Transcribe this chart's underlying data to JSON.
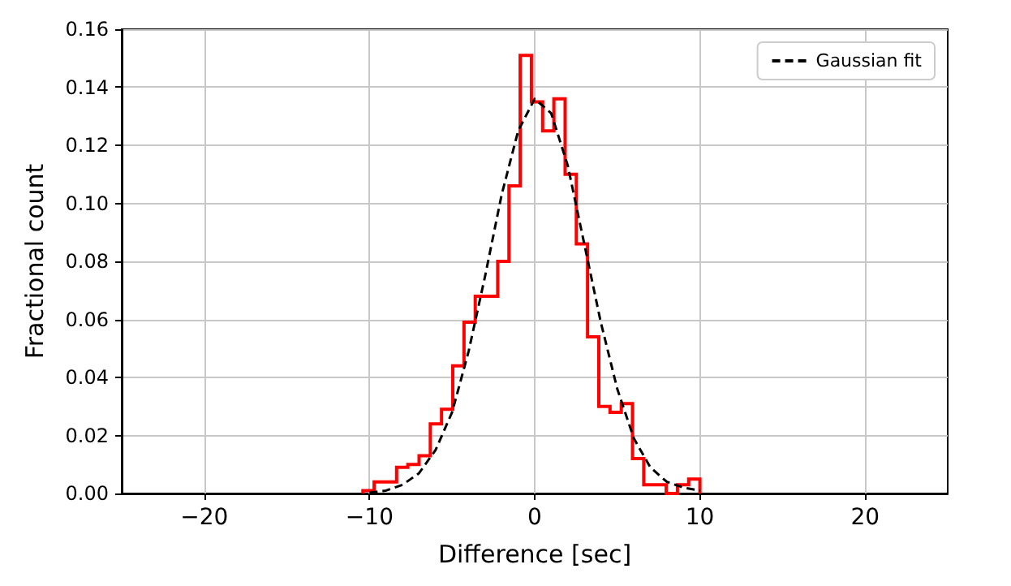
{
  "chart_data": {
    "type": "histogram",
    "xlabel": "Difference [sec]",
    "ylabel": "Fractional count",
    "bins": [
      -10.4,
      -9.72,
      -9.04,
      -8.36,
      -7.68,
      -7.0,
      -6.32,
      -5.64,
      -4.96,
      -4.28,
      -3.6,
      -2.92,
      -2.24,
      -1.56,
      -0.88,
      -0.2,
      0.48,
      1.16,
      1.84,
      2.52,
      3.2,
      3.88,
      4.56,
      5.24,
      5.92,
      6.6,
      7.28,
      7.96,
      8.64,
      9.32,
      10.0
    ],
    "series": [
      {
        "type": "histogram",
        "color": "#ff0000",
        "values": [
          0.001,
          0.004,
          0.004,
          0.009,
          0.01,
          0.013,
          0.024,
          0.029,
          0.044,
          0.059,
          0.068,
          0.068,
          0.08,
          0.106,
          0.151,
          0.135,
          0.125,
          0.136,
          0.11,
          0.086,
          0.054,
          0.03,
          0.028,
          0.031,
          0.012,
          0.003,
          0.003,
          0.0,
          0.003,
          0.005
        ]
      },
      {
        "type": "line",
        "name": "Gaussian fit",
        "color": "#000000",
        "line_style": "dashed",
        "marker": "none",
        "x": [
          -10,
          -9,
          -8,
          -7,
          -6,
          -5,
          -4,
          -3,
          -2,
          -1,
          0,
          1,
          2,
          3,
          4,
          5,
          6,
          7,
          8,
          9,
          10
        ],
        "values": [
          0.0003,
          0.001,
          0.003,
          0.007,
          0.015,
          0.028,
          0.049,
          0.075,
          0.103,
          0.125,
          0.136,
          0.131,
          0.113,
          0.086,
          0.059,
          0.036,
          0.019,
          0.009,
          0.004,
          0.002,
          0.001
        ]
      }
    ],
    "xlim": [
      -25,
      25
    ],
    "xticks": [
      {
        "value": -20,
        "label": "−20"
      },
      {
        "value": -10,
        "label": "−10"
      },
      0,
      10,
      20
    ],
    "ylim": [
      0,
      0.16
    ],
    "yticks": [
      {
        "value": 0,
        "label": "0.00"
      },
      {
        "value": 0.02,
        "label": "0.02"
      },
      {
        "value": 0.04,
        "label": "0.04"
      },
      {
        "value": 0.06,
        "label": "0.06"
      },
      {
        "value": 0.08,
        "label": "0.08"
      },
      {
        "value": 0.1,
        "label": "0.10"
      },
      {
        "value": 0.12,
        "label": "0.12"
      },
      {
        "value": 0.14,
        "label": "0.14"
      },
      {
        "value": 0.16,
        "label": "0.16"
      }
    ],
    "grid": true,
    "legend": "top right"
  }
}
